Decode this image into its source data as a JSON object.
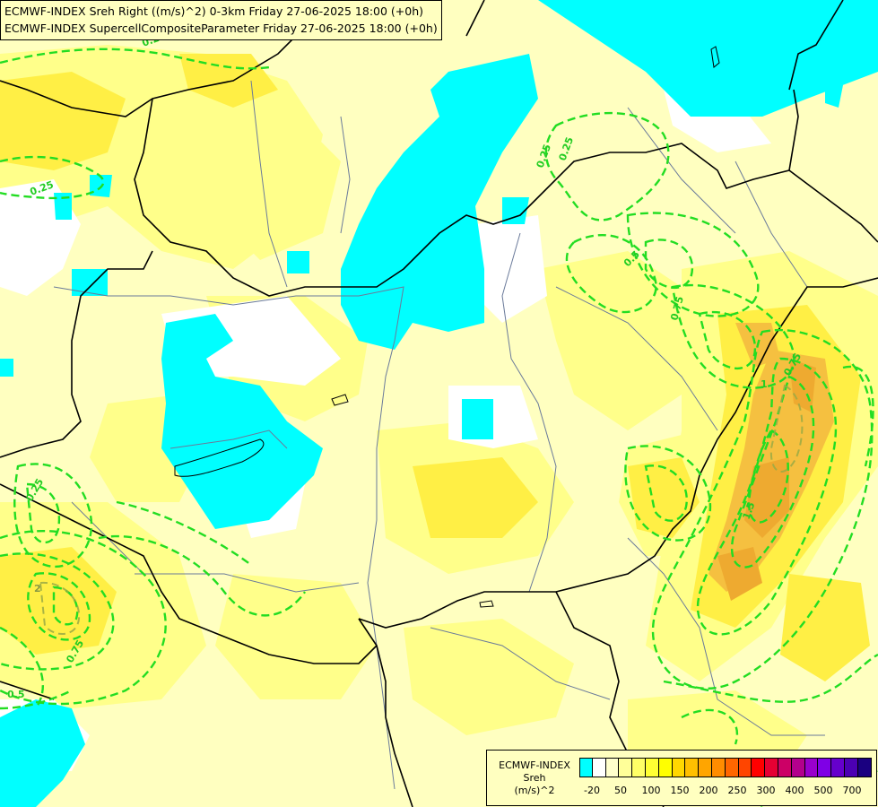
{
  "titles": {
    "line1": "ECMWF-INDEX Sreh Right ((m/s)^2) 0-3km Friday 27-06-2025 18:00 (+0h)",
    "line2": "ECMWF-INDEX SupercellCompositeParameter Friday 27-06-2025 18:00 (+0h)"
  },
  "legend": {
    "source": "ECMWF-INDEX",
    "variable": "Sreh",
    "unit": "(m/s)^2",
    "swatch_colors": [
      "#00ffff",
      "#ffffff",
      "#ffffcc",
      "#ffff99",
      "#ffff66",
      "#ffff33",
      "#ffff00",
      "#ffd700",
      "#ffbf00",
      "#ffa500",
      "#ff8c00",
      "#ff6600",
      "#ff4500",
      "#ff0000",
      "#e60033",
      "#cc0066",
      "#b3008c",
      "#9900cc",
      "#7f00e6",
      "#6600cc",
      "#4c00b3",
      "#1a0080"
    ],
    "tick_labels": [
      "-20",
      "50",
      "100",
      "150",
      "200",
      "250",
      "300",
      "400",
      "500",
      "700"
    ]
  },
  "contour_labels": [
    "0.25",
    "0.25",
    "0.25",
    "0.25",
    "0.5",
    "0.75",
    "0.75",
    "1.5",
    "0.25",
    "2",
    "0.75",
    "0.5",
    "1"
  ],
  "colors": {
    "cyan_low": "#00ffff",
    "pale_yellow": "#ffffc0",
    "yellow": "#ffff80",
    "deep_yellow": "#ffef40",
    "orange": "#f5b830",
    "scp_contour": "#22dd22",
    "border": "#000000",
    "river": "#6a7a9a"
  }
}
